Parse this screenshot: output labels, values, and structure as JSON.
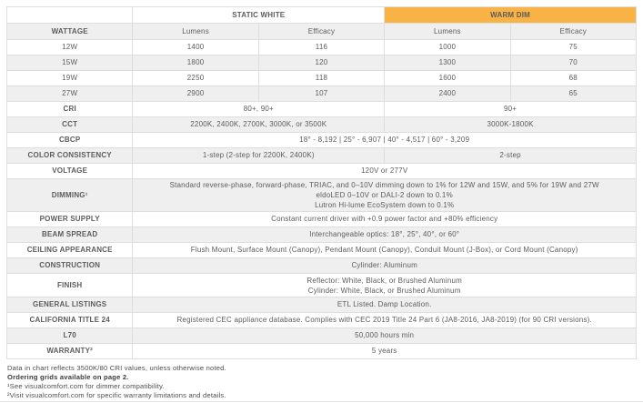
{
  "colors": {
    "warm_dim_bg": "#F8B246",
    "stripe": "#EFEFEF",
    "border": "#DEDEDE"
  },
  "header": {
    "static_white": "STATIC WHITE",
    "warm_dim": "WARM DIM"
  },
  "columns": {
    "lumens": "Lumens",
    "efficacy": "Efficacy"
  },
  "wattage": {
    "label": "WATTAGE",
    "rows": [
      {
        "watts": "12W",
        "sw_lumens": "1400",
        "sw_efficacy": "116",
        "wd_lumens": "1000",
        "wd_efficacy": "75"
      },
      {
        "watts": "15W",
        "sw_lumens": "1800",
        "sw_efficacy": "120",
        "wd_lumens": "1300",
        "wd_efficacy": "70"
      },
      {
        "watts": "19W",
        "sw_lumens": "2250",
        "sw_efficacy": "118",
        "wd_lumens": "1600",
        "wd_efficacy": "68"
      },
      {
        "watts": "27W",
        "sw_lumens": "2900",
        "sw_efficacy": "107",
        "wd_lumens": "2400",
        "wd_efficacy": "65"
      }
    ]
  },
  "specs": {
    "cri": {
      "label": "CRI",
      "static_white": "80+, 90+",
      "warm_dim": "90+"
    },
    "cct": {
      "label": "CCT",
      "static_white": "2200K, 2400K, 2700K, 3000K, or 3500K",
      "warm_dim": "3000K-1800K"
    },
    "cbcp": {
      "label": "CBCP",
      "value": "18° - 8,192  |  25° - 6,907  |  40° - 4,517  |  60° - 3,209"
    },
    "color_consistency": {
      "label": "COLOR CONSISTENCY",
      "static_white": "1-step (2-step for 2200K, 2400K)",
      "warm_dim": "2-step"
    },
    "voltage": {
      "label": "VOLTAGE",
      "value": "120V or 277V"
    },
    "dimming": {
      "label": "DIMMING¹",
      "lines": [
        "Standard reverse-phase, forward-phase, TRIAC, and 0–10V dimming down to 1% for 12W and 15W, and 5% for 19W and 27W",
        "eldoLED 0–10V or DALI-2 down to 0.1%",
        "Lutron Hi-lume EcoSystem down to 0.1%"
      ]
    },
    "power_supply": {
      "label": "POWER SUPPLY",
      "value": "Constant current driver with +0.9 power factor and +80% efficiency"
    },
    "beam_spread": {
      "label": "BEAM SPREAD",
      "value": "Interchangeable optics: 18°, 25°, 40°, or 60°"
    },
    "ceiling_appearance": {
      "label": "CEILING APPEARANCE",
      "value": "Flush Mount, Surface Mount (Canopy), Pendant Mount (Canopy), Conduit Mount (J-Box), or Cord Mount (Canopy)"
    },
    "construction": {
      "label": "CONSTRUCTION",
      "value": "Cylinder: Aluminum"
    },
    "finish": {
      "label": "FINISH",
      "lines": [
        "Reflector: White, Black, or Brushed Aluminum",
        "Cylinder: White, Black, or Brushed Aluminum"
      ]
    },
    "general_listings": {
      "label": "GENERAL LISTINGS",
      "value": "ETL Listed. Damp Location."
    },
    "california_title_24": {
      "label": "CALIFORNIA TITLE 24",
      "value": "Registered CEC appliance database. Complies with CEC 2019 Title 24 Part 6 (JA8-2016, JA8-2019) (for 90 CRI versions)."
    },
    "l70": {
      "label": "L70",
      "value": "50,000 hours min"
    },
    "warranty": {
      "label": "WARRANTY²",
      "value": "5 years"
    }
  },
  "footnotes": [
    "Data in chart reflects 3500K/80 CRI values, unless otherwise noted.",
    "Ordering grids available on page 2.",
    "¹See visualcomfort.com for dimmer compatibility.",
    "²Visit visualcomfort.com for specific warranty limitations and details."
  ]
}
